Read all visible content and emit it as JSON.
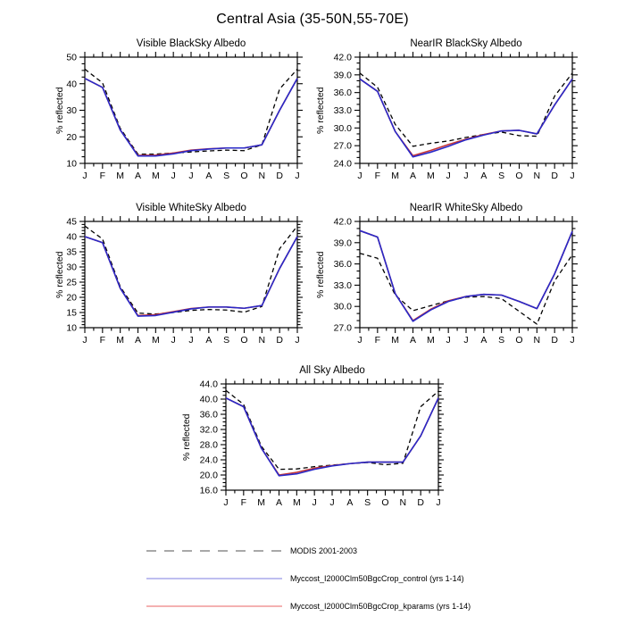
{
  "figure": {
    "title": "Central Asia (35-50N,55-70E)"
  },
  "months": [
    "J",
    "F",
    "M",
    "A",
    "M",
    "J",
    "J",
    "A",
    "S",
    "O",
    "N",
    "D",
    "J"
  ],
  "colors": {
    "modis_plot": "#000000",
    "control_plot": "#2929c8",
    "kparams_plot": "#c63636",
    "modis_key": "#a8a8a8",
    "control_key": "#9898e8",
    "kparams_key": "#f2a6a6"
  },
  "legend": {
    "entries": [
      {
        "label": "MODIS 2001-2003",
        "style": "dashed",
        "color": "#a8a8a8"
      },
      {
        "label": "Myccost_I2000Clm50BgcCrop_control (yrs 1-14)",
        "style": "solid",
        "color": "#9898e8"
      },
      {
        "label": "Myccost_I2000Clm50BgcCrop_kparams (yrs 1-14)",
        "style": "solid",
        "color": "#f2a6a6"
      }
    ]
  },
  "chart_data": [
    {
      "type": "line",
      "title": "Visible BlackSky Albedo",
      "ylabel": "% reflected",
      "ylim": [
        10,
        50
      ],
      "yticks": [
        10,
        20,
        30,
        40,
        50
      ],
      "ytick_labels": [
        "10",
        "20",
        "30",
        "40",
        "50"
      ],
      "minor_step": 2.5,
      "grid": false,
      "series": [
        {
          "name": "MODIS 2001-2003",
          "style": "dashed",
          "color": "#000000",
          "values": [
            45.5,
            40.3,
            23.2,
            13.5,
            13.5,
            13.9,
            14.3,
            14.7,
            15.0,
            14.8,
            17.0,
            38.0,
            45.5
          ]
        },
        {
          "name": "Myccost_I2000Clm50BgcCrop_control (yrs 1-14)",
          "style": "solid",
          "color": "#2929c8",
          "values": [
            42.0,
            38.6,
            22.6,
            12.8,
            12.8,
            13.6,
            14.8,
            15.4,
            15.8,
            15.8,
            17.0,
            30.0,
            42.0
          ]
        },
        {
          "name": "Myccost_I2000Clm50BgcCrop_kparams (yrs 1-14)",
          "style": "solid",
          "color": "#c63636",
          "values": [
            42.0,
            38.6,
            22.6,
            13.0,
            13.1,
            13.9,
            15.0,
            15.5,
            15.8,
            15.8,
            17.0,
            30.0,
            42.0
          ]
        }
      ]
    },
    {
      "type": "line",
      "title": "NearIR BlackSky Albedo",
      "ylabel": "% reflected",
      "ylim": [
        24,
        42
      ],
      "yticks": [
        24,
        27,
        30,
        33,
        36,
        39,
        42
      ],
      "ytick_labels": [
        "24.0",
        "27.0",
        "30.0",
        "33.0",
        "36.0",
        "39.0",
        "42.0"
      ],
      "minor_step": 1,
      "grid": false,
      "series": [
        {
          "name": "MODIS 2001-2003",
          "style": "dashed",
          "color": "#000000",
          "values": [
            39.3,
            36.9,
            30.6,
            26.9,
            27.4,
            27.8,
            28.4,
            28.9,
            29.3,
            28.7,
            28.6,
            35.4,
            39.3
          ]
        },
        {
          "name": "Myccost_I2000Clm50BgcCrop_control (yrs 1-14)",
          "style": "solid",
          "color": "#2929c8",
          "values": [
            38.3,
            36.2,
            29.4,
            25.1,
            25.9,
            26.9,
            28.0,
            28.8,
            29.5,
            29.6,
            29.0,
            33.9,
            38.3
          ]
        },
        {
          "name": "Myccost_I2000Clm50BgcCrop_kparams (yrs 1-14)",
          "style": "solid",
          "color": "#c63636",
          "values": [
            38.3,
            36.2,
            29.4,
            25.3,
            26.2,
            27.2,
            28.1,
            28.9,
            29.5,
            29.6,
            29.0,
            33.9,
            38.3
          ]
        }
      ]
    },
    {
      "type": "line",
      "title": "Visible WhiteSky Albedo",
      "ylabel": "% reflected",
      "ylim": [
        10,
        45
      ],
      "yticks": [
        10,
        15,
        20,
        25,
        30,
        35,
        40,
        45
      ],
      "ytick_labels": [
        "10",
        "15",
        "20",
        "25",
        "30",
        "35",
        "40",
        "45"
      ],
      "minor_step": 1,
      "grid": false,
      "series": [
        {
          "name": "MODIS 2001-2003",
          "style": "dashed",
          "color": "#000000",
          "values": [
            43.5,
            39.2,
            23.5,
            14.8,
            14.5,
            15.0,
            15.7,
            16.0,
            15.8,
            15.1,
            17.0,
            36.0,
            43.5
          ]
        },
        {
          "name": "Myccost_I2000Clm50BgcCrop_control (yrs 1-14)",
          "style": "solid",
          "color": "#2929c8",
          "values": [
            40.0,
            38.0,
            23.0,
            13.8,
            14.0,
            15.1,
            16.2,
            16.8,
            16.8,
            16.4,
            17.3,
            29.5,
            40.0
          ]
        },
        {
          "name": "Myccost_I2000Clm50BgcCrop_kparams (yrs 1-14)",
          "style": "solid",
          "color": "#c63636",
          "values": [
            40.0,
            38.0,
            23.0,
            14.0,
            14.3,
            15.3,
            16.3,
            16.8,
            16.8,
            16.4,
            17.3,
            29.5,
            40.0
          ]
        }
      ]
    },
    {
      "type": "line",
      "title": "NearIR WhiteSky Albedo",
      "ylabel": "% reflected",
      "ylim": [
        27,
        42
      ],
      "yticks": [
        27,
        30,
        33,
        36,
        39,
        42
      ],
      "ytick_labels": [
        "27.0",
        "30.0",
        "33.0",
        "36.0",
        "39.0",
        "42.0"
      ],
      "minor_step": 1,
      "grid": false,
      "series": [
        {
          "name": "MODIS 2001-2003",
          "style": "dashed",
          "color": "#000000",
          "values": [
            37.5,
            36.8,
            31.6,
            29.4,
            30.1,
            30.8,
            31.3,
            31.4,
            31.1,
            29.3,
            27.5,
            33.6,
            37.3
          ]
        },
        {
          "name": "Myccost_I2000Clm50BgcCrop_control (yrs 1-14)",
          "style": "solid",
          "color": "#2929c8",
          "values": [
            40.7,
            39.8,
            31.8,
            27.9,
            29.5,
            30.7,
            31.4,
            31.7,
            31.6,
            30.7,
            29.7,
            34.6,
            40.6
          ]
        },
        {
          "name": "Myccost_I2000Clm50BgcCrop_kparams (yrs 1-14)",
          "style": "solid",
          "color": "#c63636",
          "values": [
            40.7,
            39.8,
            31.8,
            28.0,
            29.6,
            30.8,
            31.4,
            31.7,
            31.6,
            30.7,
            29.7,
            34.6,
            40.6
          ]
        }
      ]
    },
    {
      "type": "line",
      "title": "All Sky Albedo",
      "ylabel": "% reflected",
      "ylim": [
        16,
        44
      ],
      "yticks": [
        16,
        20,
        24,
        28,
        32,
        36,
        40,
        44
      ],
      "ytick_labels": [
        "16.0",
        "20.0",
        "24.0",
        "28.0",
        "32.0",
        "36.0",
        "40.0",
        "44.0"
      ],
      "minor_step": 1,
      "grid": false,
      "series": [
        {
          "name": "MODIS 2001-2003",
          "style": "dashed",
          "color": "#000000",
          "values": [
            42.3,
            38.6,
            27.6,
            21.5,
            21.6,
            22.2,
            22.6,
            23.0,
            23.3,
            22.7,
            23.1,
            38.0,
            42.1
          ]
        },
        {
          "name": "Myccost_I2000Clm50BgcCrop_control (yrs 1-14)",
          "style": "solid",
          "color": "#2929c8",
          "values": [
            40.3,
            38.0,
            27.1,
            19.8,
            20.3,
            21.5,
            22.4,
            23.0,
            23.4,
            23.4,
            23.4,
            30.3,
            40.3
          ]
        },
        {
          "name": "Myccost_I2000Clm50BgcCrop_kparams (yrs 1-14)",
          "style": "solid",
          "color": "#c63636",
          "values": [
            40.3,
            38.0,
            27.1,
            20.0,
            20.7,
            21.8,
            22.5,
            23.0,
            23.4,
            23.4,
            23.4,
            30.3,
            40.3
          ]
        }
      ]
    }
  ]
}
